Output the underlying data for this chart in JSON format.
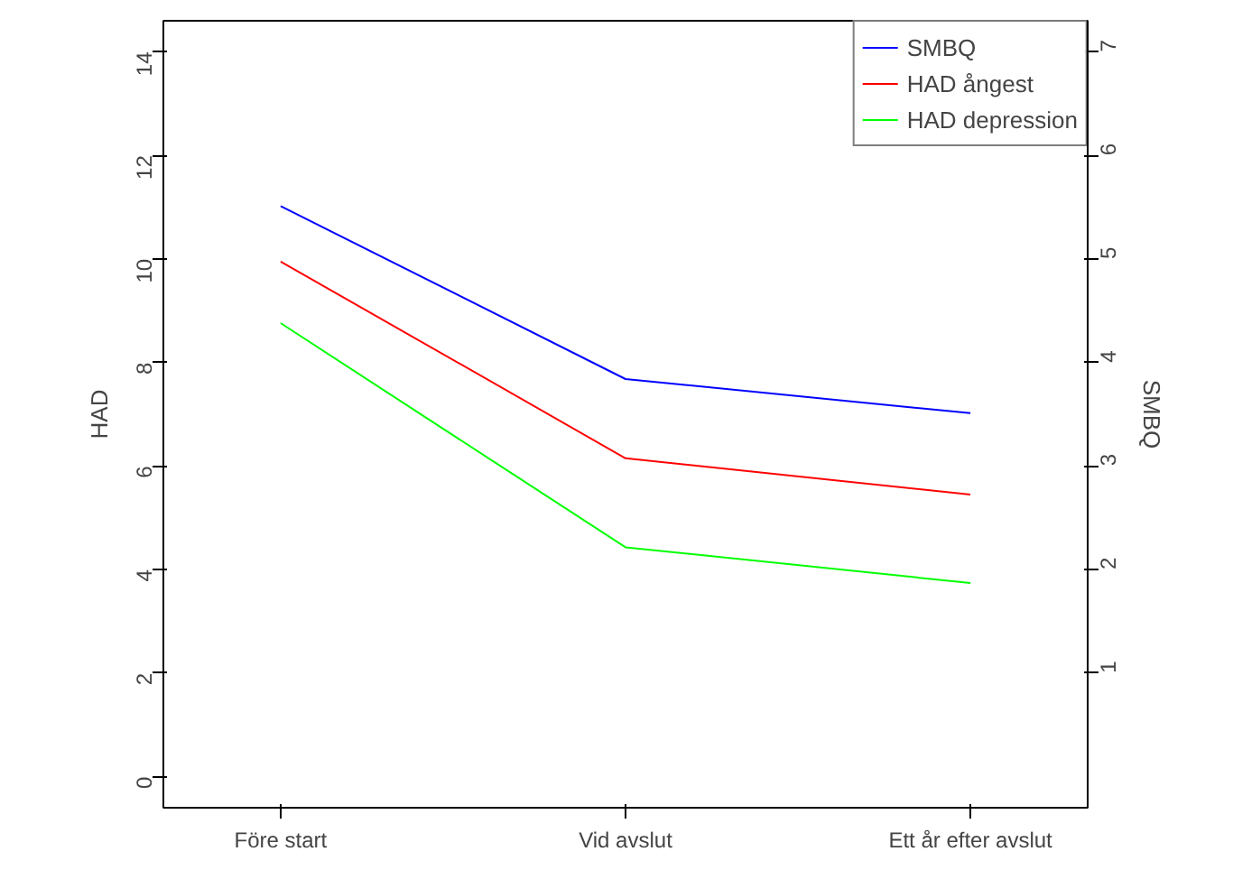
{
  "chart_data": {
    "type": "line",
    "categories": [
      "Före start",
      "Vid avslut",
      "Ett år efter avslut"
    ],
    "ylabel": "HAD",
    "y2label": "SMBQ",
    "ylim": [
      -0.6,
      14.6
    ],
    "yticks": [
      0,
      2,
      4,
      6,
      8,
      10,
      12,
      14
    ],
    "y2lim": [
      -0.3,
      7.3
    ],
    "y2ticks": [
      1,
      2,
      3,
      4,
      5,
      6,
      7
    ],
    "grid": false,
    "legend": "top right",
    "series": [
      {
        "name": "SMBQ",
        "color": "#0000ff",
        "values": [
          5.51,
          3.84,
          3.51
        ],
        "axis": "y2"
      },
      {
        "name": "HAD ångest",
        "color": "#ff0000",
        "values": [
          9.95,
          6.15,
          5.45
        ]
      },
      {
        "name": "HAD depression",
        "color": "#00ff00",
        "values": [
          8.76,
          4.43,
          3.74
        ]
      }
    ]
  }
}
